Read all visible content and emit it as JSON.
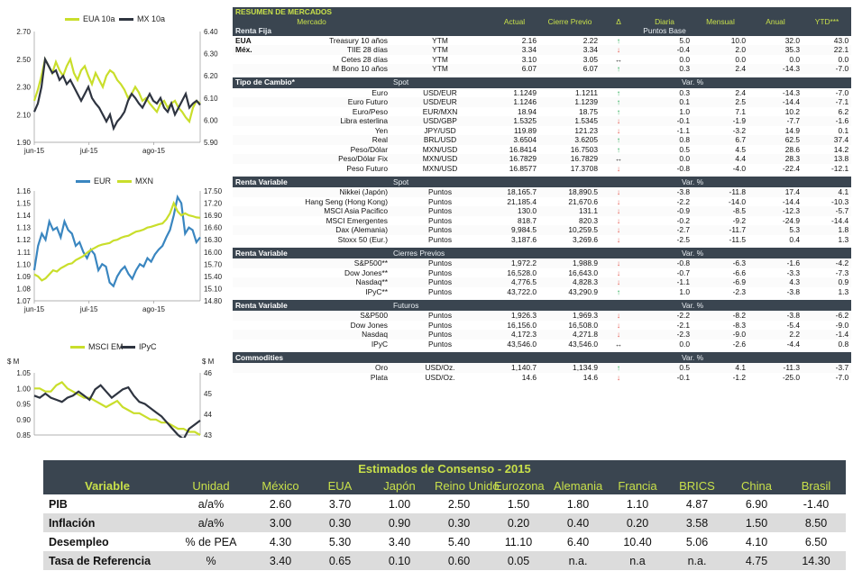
{
  "charts": [
    {
      "name": "bonds",
      "legend": [
        "EUA 10a",
        "MX 10a"
      ],
      "colors": [
        "#c9de2b",
        "#2e3440"
      ],
      "left_ticks": [
        "2.70",
        "2.50",
        "2.30",
        "2.10",
        "1.90"
      ],
      "right_ticks": [
        "6.40",
        "6.30",
        "6.20",
        "6.10",
        "6.00",
        "5.90"
      ],
      "x_ticks": [
        "jun-15",
        "jul-15",
        "ago-15"
      ],
      "chart_data": {
        "type": "line",
        "left_range": [
          1.9,
          2.7
        ],
        "right_range": [
          5.9,
          6.4
        ],
        "series": [
          {
            "name": "EUA 10a",
            "axis": "left",
            "values": [
              2.2,
              2.28,
              2.38,
              2.5,
              2.45,
              2.4,
              2.48,
              2.42,
              2.38,
              2.45,
              2.5,
              2.4,
              2.35,
              2.42,
              2.45,
              2.38,
              2.32,
              2.4,
              2.35,
              2.3,
              2.38,
              2.42,
              2.4,
              2.35,
              2.32,
              2.28,
              2.22,
              2.25,
              2.3,
              2.26,
              2.2,
              2.22,
              2.18,
              2.15,
              2.12,
              2.18,
              2.2,
              2.15,
              2.18,
              2.2,
              2.15,
              2.12,
              2.08,
              2.05,
              2.15,
              2.2,
              2.18
            ]
          },
          {
            "name": "MX 10a",
            "axis": "left",
            "values": [
              2.12,
              2.18,
              2.3,
              2.5,
              2.45,
              2.4,
              2.42,
              2.35,
              2.38,
              2.32,
              2.35,
              2.3,
              2.25,
              2.2,
              2.25,
              2.3,
              2.22,
              2.18,
              2.15,
              2.1,
              2.05,
              2.1,
              2.0,
              2.05,
              2.08,
              2.12,
              2.2,
              2.25,
              2.22,
              2.18,
              2.15,
              2.2,
              2.25,
              2.2,
              2.18,
              2.22,
              2.15,
              2.12,
              2.18,
              2.1,
              2.15,
              2.2,
              2.25,
              2.15,
              2.18,
              2.2,
              2.17
            ]
          }
        ]
      }
    },
    {
      "name": "fx",
      "legend": [
        "EUR",
        "MXN"
      ],
      "colors": [
        "#3a86c0",
        "#c9de2b"
      ],
      "left_ticks": [
        "1.16",
        "1.15",
        "1.14",
        "1.13",
        "1.12",
        "1.11",
        "1.10",
        "1.09",
        "1.08",
        "1.07"
      ],
      "right_ticks": [
        "17.50",
        "17.20",
        "16.90",
        "16.60",
        "16.30",
        "16.00",
        "15.70",
        "15.40",
        "15.10",
        "14.80"
      ],
      "x_ticks": [
        "jun-15",
        "jul-15",
        "ago-15"
      ],
      "chart_data": {
        "type": "line",
        "left_range": [
          1.07,
          1.16
        ],
        "right_range": [
          14.8,
          17.5
        ],
        "series": [
          {
            "name": "EUR",
            "axis": "left",
            "values": [
              1.095,
              1.115,
              1.125,
              1.12,
              1.135,
              1.128,
              1.13,
              1.122,
              1.135,
              1.128,
              1.125,
              1.115,
              1.118,
              1.11,
              1.105,
              1.112,
              1.108,
              1.095,
              1.1,
              1.098,
              1.085,
              1.082,
              1.09,
              1.095,
              1.098,
              1.092,
              1.088,
              1.095,
              1.1,
              1.098,
              1.105,
              1.102,
              1.108,
              1.112,
              1.115,
              1.122,
              1.128,
              1.14,
              1.155,
              1.15,
              1.125,
              1.13,
              1.128,
              1.118,
              1.122
            ]
          },
          {
            "name": "MXN",
            "axis": "right",
            "values": [
              15.45,
              15.4,
              15.3,
              15.35,
              15.45,
              15.55,
              15.52,
              15.6,
              15.65,
              15.7,
              15.72,
              15.8,
              15.85,
              15.9,
              15.98,
              16.05,
              16.1,
              16.15,
              16.18,
              16.2,
              16.22,
              16.28,
              16.3,
              16.35,
              16.38,
              16.4,
              16.45,
              16.5,
              16.52,
              16.55,
              16.6,
              16.62,
              16.65,
              16.68,
              16.7,
              16.8,
              16.95,
              17.2,
              17.0,
              16.9,
              16.95,
              16.9,
              16.88,
              16.85,
              16.84
            ]
          }
        ]
      }
    },
    {
      "name": "equity",
      "legend": [
        "MSCI EM",
        "IPyC"
      ],
      "colors": [
        "#c9de2b",
        "#2e3440"
      ],
      "left_ticks": [
        "1.05",
        "1.00",
        "0.95",
        "0.90",
        "0.85"
      ],
      "right_ticks": [
        "46",
        "45",
        "44",
        "43"
      ],
      "axis_marks": [
        "$\nM",
        "$\nM"
      ],
      "chart_data": {
        "type": "line",
        "left_range": [
          0.85,
          1.05
        ],
        "right_range": [
          43,
          46
        ],
        "series": [
          {
            "name": "MSCI EM",
            "axis": "left",
            "values": [
              1.0,
              1.0,
              0.99,
              0.99,
              1.01,
              1.02,
              1.0,
              0.99,
              0.98,
              0.97,
              0.97,
              0.96,
              0.95,
              0.94,
              0.95,
              0.96,
              0.94,
              0.93,
              0.92,
              0.92,
              0.91,
              0.9,
              0.9,
              0.89,
              0.89,
              0.88,
              0.87,
              0.87,
              0.86,
              0.86,
              0.85
            ]
          },
          {
            "name": "IPyC",
            "axis": "right",
            "values": [
              44.9,
              44.8,
              45.0,
              44.8,
              44.7,
              44.6,
              44.8,
              44.9,
              45.1,
              44.9,
              44.7,
              45.2,
              45.4,
              45.1,
              44.8,
              45.0,
              45.2,
              45.3,
              44.9,
              44.6,
              44.5,
              44.3,
              44.1,
              43.9,
              43.6,
              43.3,
              43.0,
              42.8,
              43.3,
              43.5,
              43.7
            ]
          }
        ]
      }
    }
  ],
  "market": {
    "title": "RESUMEN DE MERCADOS",
    "columns": [
      "Mercado",
      "",
      "Actual",
      "Cierre Previo",
      "Δ",
      "Diaria",
      "Mensual",
      "Anual",
      "YTD***"
    ],
    "puntos_base": "Puntos Base",
    "renta_fija_label": "Renta Fija",
    "renta_fija": [
      {
        "region": "EUA",
        "name": "Treasury 10 años",
        "unit": "YTM",
        "actual": "2.16",
        "prev": "2.22",
        "dir": "↑",
        "d": "5.0",
        "m": "10.0",
        "a": "32.0",
        "y": "43.0"
      },
      {
        "region": "Méx.",
        "name": "TIIE 28 días",
        "unit": "YTM",
        "actual": "3.34",
        "prev": "3.34",
        "dir": "↓",
        "d": "-0.4",
        "m": "2.0",
        "a": "35.3",
        "y": "22.1"
      },
      {
        "region": "",
        "name": "Cetes 28 días",
        "unit": "YTM",
        "actual": "3.10",
        "prev": "3.05",
        "dir": "↔",
        "d": "0.0",
        "m": "0.0",
        "a": "0.0",
        "y": "0.0"
      },
      {
        "region": "",
        "name": "M Bono 10 años",
        "unit": "YTM",
        "actual": "6.07",
        "prev": "6.07",
        "dir": "↑",
        "d": "0.3",
        "m": "2.4",
        "a": "-14.3",
        "y": "-7.0"
      }
    ],
    "sections": [
      {
        "label": "Tipo de Cambio*",
        "sub": "Spot",
        "var": "Var. %",
        "rows": [
          {
            "name": "Euro",
            "unit": "USD/EUR",
            "actual": "1.1249",
            "prev": "1.1211",
            "dir": "↑",
            "d": "0.3",
            "m": "2.4",
            "a": "-14.3",
            "y": "-7.0"
          },
          {
            "name": "Euro Futuro",
            "unit": "USD/EUR",
            "actual": "1.1246",
            "prev": "1.1239",
            "dir": "↑",
            "d": "0.1",
            "m": "2.5",
            "a": "-14.4",
            "y": "-7.1"
          },
          {
            "name": "Euro/Peso",
            "unit": "EUR/MXN",
            "actual": "18.94",
            "prev": "18.75",
            "dir": "↑",
            "d": "1.0",
            "m": "7.1",
            "a": "10.2",
            "y": "6.2"
          },
          {
            "name": "Libra esterlina",
            "unit": "USD/GBP",
            "actual": "1.5325",
            "prev": "1.5345",
            "dir": "↓",
            "d": "-0.1",
            "m": "-1.9",
            "a": "-7.7",
            "y": "-1.6"
          },
          {
            "name": "Yen",
            "unit": "JPY/USD",
            "actual": "119.89",
            "prev": "121.23",
            "dir": "↓",
            "d": "-1.1",
            "m": "-3.2",
            "a": "14.9",
            "y": "0.1"
          },
          {
            "name": "Real",
            "unit": "BRL/USD",
            "actual": "3.6504",
            "prev": "3.6205",
            "dir": "↑",
            "d": "0.8",
            "m": "6.7",
            "a": "62.5",
            "y": "37.4"
          },
          {
            "name": "Peso/Dólar",
            "unit": "MXN/USD",
            "actual": "16.8414",
            "prev": "16.7503",
            "dir": "↑",
            "d": "0.5",
            "m": "4.5",
            "a": "28.6",
            "y": "14.2"
          },
          {
            "name": "Peso/Dólar Fix",
            "unit": "MXN/USD",
            "actual": "16.7829",
            "prev": "16.7829",
            "dir": "↔",
            "d": "0.0",
            "m": "4.4",
            "a": "28.3",
            "y": "13.8"
          },
          {
            "name": "Peso Futuro",
            "unit": "MXN/USD",
            "actual": "16.8577",
            "prev": "17.3708",
            "dir": "↓",
            "d": "-0.8",
            "m": "-4.0",
            "a": "-22.4",
            "y": "-12.1"
          }
        ]
      },
      {
        "label": "Renta Variable",
        "sub": "Spot",
        "var": "Var. %",
        "rows": [
          {
            "name": "Nikkei (Japón)",
            "unit": "Puntos",
            "actual": "18,165.7",
            "prev": "18,890.5",
            "dir": "↓",
            "d": "-3.8",
            "m": "-11.8",
            "a": "17.4",
            "y": "4.1"
          },
          {
            "name": "Hang Seng (Hong Kong)",
            "unit": "Puntos",
            "actual": "21,185.4",
            "prev": "21,670.6",
            "dir": "↓",
            "d": "-2.2",
            "m": "-14.0",
            "a": "-14.4",
            "y": "-10.3"
          },
          {
            "name": "MSCI Asia Pacifico",
            "unit": "Puntos",
            "actual": "130.0",
            "prev": "131.1",
            "dir": "↓",
            "d": "-0.9",
            "m": "-8.5",
            "a": "-12.3",
            "y": "-5.7"
          },
          {
            "name": "MSCI Emergentes",
            "unit": "Puntos",
            "actual": "818.7",
            "prev": "820.3",
            "dir": "↓",
            "d": "-0.2",
            "m": "-9.2",
            "a": "-24.9",
            "y": "-14.4"
          },
          {
            "name": "Dax (Alemania)",
            "unit": "Puntos",
            "actual": "9,984.5",
            "prev": "10,259.5",
            "dir": "↓",
            "d": "-2.7",
            "m": "-11.7",
            "a": "5.3",
            "y": "1.8"
          },
          {
            "name": "Stoxx 50 (Eur.)",
            "unit": "Puntos",
            "actual": "3,187.6",
            "prev": "3,269.6",
            "dir": "↓",
            "d": "-2.5",
            "m": "-11.5",
            "a": "0.4",
            "y": "1.3"
          }
        ]
      },
      {
        "label": "Renta Variable",
        "sub": "Cierres Previos",
        "var": "Var. %",
        "rows": [
          {
            "name": "S&P500**",
            "unit": "Puntos",
            "actual": "1,972.2",
            "prev": "1,988.9",
            "dir": "↓",
            "d": "-0.8",
            "m": "-6.3",
            "a": "-1.6",
            "y": "-4.2"
          },
          {
            "name": "Dow Jones**",
            "unit": "Puntos",
            "actual": "16,528.0",
            "prev": "16,643.0",
            "dir": "↓",
            "d": "-0.7",
            "m": "-6.6",
            "a": "-3.3",
            "y": "-7.3"
          },
          {
            "name": "Nasdaq**",
            "unit": "Puntos",
            "actual": "4,776.5",
            "prev": "4,828.3",
            "dir": "↓",
            "d": "-1.1",
            "m": "-6.9",
            "a": "4.3",
            "y": "0.9"
          },
          {
            "name": "IPyC**",
            "unit": "Puntos",
            "actual": "43,722.0",
            "prev": "43,290.9",
            "dir": "↑",
            "d": "1.0",
            "m": "-2.3",
            "a": "-3.8",
            "y": "1.3"
          }
        ]
      },
      {
        "label": "Renta Variable",
        "sub": "Futuros",
        "var": "Var. %",
        "rows": [
          {
            "name": "S&P500",
            "unit": "Puntos",
            "actual": "1,926.3",
            "prev": "1,969.3",
            "dir": "↓",
            "d": "-2.2",
            "m": "-8.2",
            "a": "-3.8",
            "y": "-6.2"
          },
          {
            "name": "Dow Jones",
            "unit": "Puntos",
            "actual": "16,156.0",
            "prev": "16,508.0",
            "dir": "↓",
            "d": "-2.1",
            "m": "-8.3",
            "a": "-5.4",
            "y": "-9.0"
          },
          {
            "name": "Nasdaq",
            "unit": "Puntos",
            "actual": "4,172.3",
            "prev": "4,271.8",
            "dir": "↓",
            "d": "-2.3",
            "m": "-9.0",
            "a": "2.2",
            "y": "-1.4"
          },
          {
            "name": "IPyC",
            "unit": "Puntos",
            "actual": "43,546.0",
            "prev": "43,546.0",
            "dir": "↔",
            "d": "0.0",
            "m": "-2.6",
            "a": "-4.4",
            "y": "0.8"
          }
        ]
      },
      {
        "label": "Commodities",
        "sub": "",
        "var": "Var. %",
        "rows": [
          {
            "name": "Oro",
            "unit": "USD/Oz.",
            "actual": "1,140.7",
            "prev": "1,134.9",
            "dir": "↑",
            "d": "0.5",
            "m": "4.1",
            "a": "-11.3",
            "y": "-3.7"
          },
          {
            "name": "Plata",
            "unit": "USD/Oz.",
            "actual": "14.6",
            "prev": "14.6",
            "dir": "↓",
            "d": "-0.1",
            "m": "-1.2",
            "a": "-25.0",
            "y": "-7.0"
          }
        ]
      }
    ]
  },
  "consensus": {
    "title": "Estimados de Consenso - 2015",
    "headers": [
      "Variable",
      "Unidad",
      "México",
      "EUA",
      "Japón",
      "Reino Unido",
      "Eurozona",
      "Alemania",
      "Francia",
      "BRICS",
      "China",
      "Brasil"
    ],
    "rows": [
      [
        "PIB",
        "a/a%",
        "2.60",
        "3.70",
        "1.00",
        "2.50",
        "1.50",
        "1.80",
        "1.10",
        "4.87",
        "6.90",
        "-1.40"
      ],
      [
        "Inflación",
        "a/a%",
        "3.00",
        "0.30",
        "0.90",
        "0.30",
        "0.20",
        "0.40",
        "0.20",
        "3.58",
        "1.50",
        "8.50"
      ],
      [
        "Desempleo",
        "% de PEA",
        "4.30",
        "5.30",
        "3.40",
        "5.40",
        "11.10",
        "6.40",
        "10.40",
        "5.06",
        "4.10",
        "6.50"
      ],
      [
        "Tasa de Referencia",
        "%",
        "3.40",
        "0.65",
        "0.10",
        "0.60",
        "0.05",
        "n.a.",
        "n.a",
        "n.a.",
        "4.75",
        "14.30"
      ]
    ]
  }
}
